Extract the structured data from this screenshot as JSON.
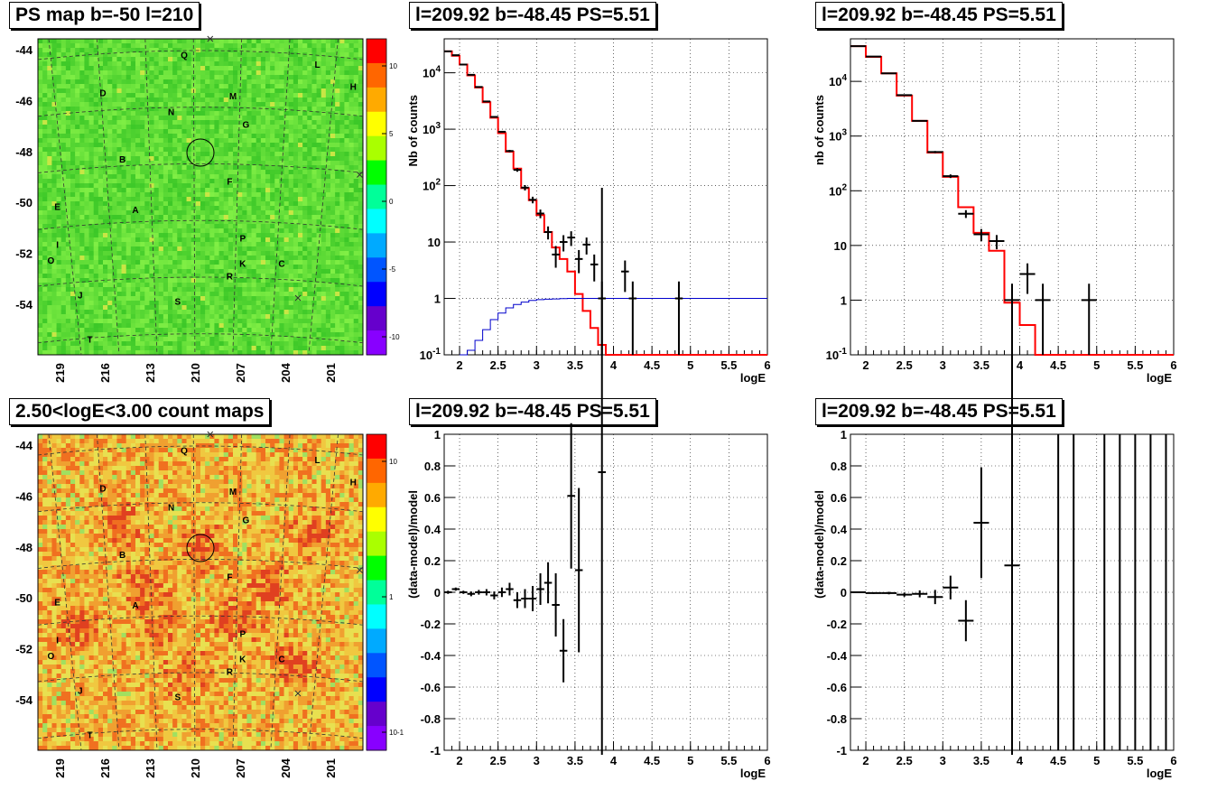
{
  "titles": {
    "map1": "PS map b=-50 l=210",
    "spec1": "l=209.92 b=-48.45 PS=5.51",
    "spec2": "l=209.92 b=-48.45 PS=5.51",
    "map2": "2.50<logE<3.00 count maps",
    "res1": "l=209.92 b=-48.45 PS=5.51",
    "res2": "l=209.92 b=-48.45 PS=5.51"
  },
  "colors": {
    "data": "#000000",
    "model": "#ff0000",
    "efficiency": "#0000cc",
    "grid": "#000000"
  },
  "maps": {
    "lat_ticks": [
      "-44",
      "-46",
      "-48",
      "-50",
      "-52",
      "-54"
    ],
    "lon_ticks": [
      "219",
      "216",
      "213",
      "210",
      "207",
      "204",
      "201"
    ],
    "regions": [
      "Q",
      "L",
      "H",
      "D",
      "M",
      "N",
      "G",
      "B",
      "F",
      "E",
      "A",
      "I",
      "P",
      "O",
      "K",
      "C",
      "R",
      "J",
      "S",
      "T"
    ],
    "map1_scale": [
      "10",
      "5",
      "0",
      "-5",
      "-10"
    ],
    "map2_scale": [
      "10",
      "1",
      "10^-1"
    ],
    "map1_colormap": "green (0) field, rainbow scale -12..12",
    "map2_colormap": "orange/yellow counts, log rainbow scale"
  },
  "chart_data": [
    {
      "type": "line",
      "title": "l=209.92 b=-48.45 PS=5.51",
      "xlabel": "logE",
      "ylabel": "Nb of counts",
      "xlim": [
        1.8,
        6
      ],
      "ylim": [
        0.1,
        40000
      ],
      "log_y": true,
      "grid": true,
      "x_ticks": [
        "2",
        "2.5",
        "3",
        "3.5",
        "4",
        "4.5",
        "5",
        "5.5",
        "6"
      ],
      "y_ticks": [
        "10^-1",
        "1",
        "10",
        "10^2",
        "10^3",
        "10^4"
      ],
      "series": [
        {
          "style": "step",
          "bin_width": 0.1,
          "x": [
            1.85,
            1.95,
            2.05,
            2.15,
            2.25,
            2.35,
            2.45,
            2.55,
            2.65,
            2.75,
            2.85,
            2.95,
            3.05,
            3.15,
            3.25,
            3.35,
            3.45,
            3.55,
            3.65,
            3.75,
            3.85,
            3.95,
            4.05,
            4.15,
            4.25,
            4.35,
            4.45
          ],
          "y": [
            24000,
            20000,
            14000,
            9000,
            5500,
            3000,
            1600,
            850,
            400,
            200,
            90,
            55,
            30,
            15,
            8,
            5,
            3,
            1.2,
            0.6,
            0.3,
            0.15,
            0.1,
            0.1,
            0.1,
            0.1,
            0.1,
            0.1
          ]
        },
        {
          "style": "step",
          "bin_width": 0.1,
          "x": [
            2.05,
            2.15,
            2.25,
            2.35,
            2.45,
            2.55,
            2.65,
            2.75,
            2.85,
            2.95,
            3.05,
            3.15,
            3.25,
            3.35,
            3.45,
            3.55,
            3.65,
            3.75,
            3.85,
            3.95,
            4.05,
            4.15,
            4.25,
            4.35,
            4.45,
            4.55,
            4.65,
            4.75,
            4.85,
            4.95,
            5.05,
            5.15,
            5.25,
            5.35,
            5.45,
            5.55,
            5.65,
            5.75,
            5.85,
            5.95
          ],
          "y": [
            0.1,
            0.12,
            0.18,
            0.28,
            0.42,
            0.55,
            0.68,
            0.78,
            0.86,
            0.92,
            0.95,
            0.97,
            0.98,
            0.99,
            1,
            1,
            1,
            1,
            1,
            1,
            1,
            1,
            1,
            1,
            1,
            1,
            1,
            1,
            1,
            1,
            1,
            1,
            1,
            1,
            1,
            1,
            1,
            1,
            1,
            1
          ]
        },
        {
          "style": "points",
          "xerr": 0.05,
          "x": [
            1.85,
            1.95,
            2.05,
            2.15,
            2.25,
            2.35,
            2.45,
            2.55,
            2.65,
            2.75,
            2.85,
            2.95,
            3.05,
            3.15,
            3.25,
            3.35,
            3.45,
            3.55,
            3.65,
            3.75,
            3.85,
            4.15,
            4.25,
            4.85
          ],
          "y": [
            24000,
            20500,
            14000,
            9200,
            5600,
            3100,
            1650,
            900,
            410,
            190,
            92,
            56,
            32,
            15,
            6,
            10,
            12,
            5,
            9,
            4,
            1,
            3,
            1,
            1
          ],
          "yerr": [
            160,
            140,
            120,
            95,
            75,
            56,
            41,
            30,
            20,
            14,
            10,
            7.5,
            5.6,
            3.9,
            2.5,
            3.2,
            3.5,
            2.2,
            3,
            2,
            1,
            1.7,
            1,
            1
          ]
        }
      ]
    },
    {
      "type": "line",
      "title": "l=209.92 b=-48.45 PS=5.51",
      "xlabel": "logE",
      "ylabel": "nb of counts",
      "xlim": [
        1.8,
        6
      ],
      "ylim": [
        0.1,
        60000
      ],
      "log_y": true,
      "grid": true,
      "x_ticks": [
        "2",
        "2.5",
        "3",
        "3.5",
        "4",
        "4.5",
        "5",
        "5.5",
        "6"
      ],
      "y_ticks": [
        "10^-1",
        "1",
        "10",
        "10^2",
        "10^3",
        "10^4"
      ],
      "series": [
        {
          "style": "step",
          "bin_width": 0.2,
          "x": [
            1.9,
            2.1,
            2.3,
            2.5,
            2.7,
            2.9,
            3.1,
            3.3,
            3.5,
            3.7,
            3.9,
            4.1,
            4.3,
            4.5,
            4.7,
            4.9,
            5.1,
            5.3,
            5.5,
            5.7,
            5.9
          ],
          "y": [
            44000,
            28000,
            14000,
            5500,
            1900,
            500,
            180,
            50,
            17,
            8,
            0.9,
            0.35,
            0.1,
            0.1,
            0.1,
            0.1,
            0.1,
            0.1,
            0.1,
            0.1,
            0.1
          ]
        },
        {
          "style": "points",
          "xerr": 0.1,
          "x": [
            1.9,
            2.1,
            2.3,
            2.5,
            2.7,
            2.9,
            3.1,
            3.3,
            3.5,
            3.7,
            3.9,
            4.1,
            4.3,
            4.9
          ],
          "y": [
            44000,
            28500,
            14000,
            5600,
            1900,
            510,
            185,
            38,
            16,
            12,
            1,
            3,
            1,
            1
          ],
          "yerr": [
            210,
            170,
            120,
            75,
            44,
            23,
            14,
            6.2,
            4,
            3.5,
            1,
            1.7,
            1,
            1
          ]
        }
      ]
    },
    {
      "type": "scatter",
      "title": "l=209.92 b=-48.45 PS=5.51",
      "xlabel": "logE",
      "ylabel": "(data-model)/model",
      "xlim": [
        1.8,
        6
      ],
      "ylim": [
        -1,
        1
      ],
      "grid": true,
      "x_ticks": [
        "2",
        "2.5",
        "3",
        "3.5",
        "4",
        "4.5",
        "5",
        "5.5",
        "6"
      ],
      "y_ticks": [
        "-1",
        "-0.8",
        "-0.6",
        "-0.4",
        "-0.2",
        "0",
        "0.2",
        "0.4",
        "0.6",
        "0.8",
        "1"
      ],
      "series": [
        {
          "style": "points",
          "xerr": 0.05,
          "x": [
            1.85,
            1.95,
            2.05,
            2.15,
            2.25,
            2.35,
            2.45,
            2.55,
            2.65,
            2.75,
            2.85,
            2.95,
            3.05,
            3.15,
            3.25,
            3.35,
            3.45,
            3.55,
            3.85
          ],
          "y": [
            0.0,
            0.02,
            0.0,
            -0.01,
            0.0,
            0.0,
            -0.02,
            0.0,
            0.02,
            -0.05,
            -0.04,
            -0.04,
            0.02,
            0.06,
            -0.08,
            -0.37,
            0.61,
            0.14,
            0.76
          ],
          "yerr": [
            0.01,
            0.01,
            0.01,
            0.015,
            0.015,
            0.02,
            0.025,
            0.03,
            0.04,
            0.05,
            0.06,
            0.08,
            0.1,
            0.13,
            0.2,
            0.2,
            0.46,
            0.52,
            1.8
          ]
        }
      ]
    },
    {
      "type": "scatter",
      "title": "l=209.92 b=-48.45 PS=5.51",
      "xlabel": "logE",
      "ylabel": "(data-model)/model",
      "xlim": [
        1.8,
        6
      ],
      "ylim": [
        -1,
        1
      ],
      "grid": true,
      "x_ticks": [
        "2",
        "2.5",
        "3",
        "3.5",
        "4",
        "4.5",
        "5",
        "5.5",
        "6"
      ],
      "y_ticks": [
        "-1",
        "-0.8",
        "-0.6",
        "-0.4",
        "-0.2",
        "0",
        "0.2",
        "0.4",
        "0.6",
        "0.8",
        "1"
      ],
      "series": [
        {
          "style": "points",
          "xerr": 0.1,
          "x": [
            1.9,
            2.1,
            2.3,
            2.5,
            2.7,
            2.9,
            3.1,
            3.3,
            3.5,
            3.9
          ],
          "y": [
            0.0,
            -0.005,
            -0.005,
            -0.015,
            -0.01,
            -0.03,
            0.03,
            -0.18,
            0.44,
            0.17
          ],
          "yerr": [
            0.005,
            0.005,
            0.008,
            0.013,
            0.022,
            0.045,
            0.075,
            0.13,
            0.35,
            1.5
          ]
        },
        {
          "style": "errbar",
          "x": [
            4.5,
            4.7,
            5.1,
            5.3,
            5.5,
            5.7,
            5.9
          ],
          "y": [
            0,
            0,
            0,
            0,
            0,
            0,
            0
          ],
          "yerr": [
            2,
            2,
            2,
            2,
            2,
            2,
            2
          ]
        }
      ]
    }
  ]
}
